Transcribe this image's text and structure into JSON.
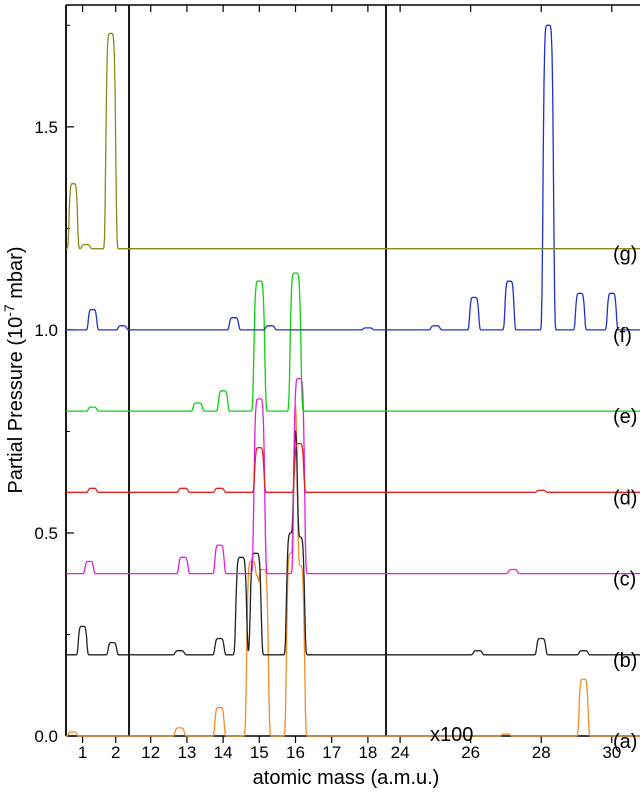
{
  "chart_data": {
    "type": "line",
    "xlabel": "atomic mass (a.m.u.)",
    "ylabel_parts": [
      "Partial Pressure (10",
      "-7",
      " mbar)"
    ],
    "y_ticks": [
      "0.0",
      "0.5",
      "1.0",
      "1.5"
    ],
    "ylim": [
      0,
      1.8
    ],
    "grid": false,
    "legend": "none",
    "annotation": "x100",
    "panels": [
      {
        "range": [
          0.5,
          2.4
        ],
        "ticks": [
          1,
          2
        ],
        "tick_labels": [
          "1",
          "2"
        ]
      },
      {
        "range": [
          11.4,
          18.5
        ],
        "ticks": [
          12,
          13,
          14,
          15,
          16,
          17,
          18
        ],
        "tick_labels": [
          "12",
          "13",
          "14",
          "15",
          "16",
          "17",
          "18"
        ]
      },
      {
        "range": [
          23.6,
          30.8
        ],
        "ticks": [
          24,
          26,
          28,
          30
        ],
        "tick_labels": [
          "24",
          "26",
          "28",
          "30"
        ]
      }
    ],
    "series": [
      {
        "label": "(a)",
        "color": "#f28c28",
        "baseline": 0.0,
        "peaks": [
          [
            0.7,
            0.01
          ],
          [
            12.8,
            0.02
          ],
          [
            13.9,
            0.07
          ],
          [
            14.8,
            0.43
          ],
          [
            15.1,
            0.41
          ],
          [
            15.9,
            0.45
          ],
          [
            16.1,
            0.42
          ],
          [
            27.0,
            0.005
          ],
          [
            29.2,
            0.14
          ]
        ]
      },
      {
        "label": "(b)",
        "color": "#222222",
        "baseline": 0.2,
        "peaks": [
          [
            1.0,
            0.07
          ],
          [
            1.9,
            0.03
          ],
          [
            12.8,
            0.01
          ],
          [
            13.9,
            0.04
          ],
          [
            14.5,
            0.24
          ],
          [
            14.9,
            0.25
          ],
          [
            15.9,
            0.3
          ],
          [
            16.1,
            0.29
          ],
          [
            26.2,
            0.01
          ],
          [
            28.0,
            0.04
          ],
          [
            29.2,
            0.01
          ]
        ]
      },
      {
        "label": "(c)",
        "color": "#e020e0",
        "baseline": 0.4,
        "peaks": [
          [
            1.2,
            0.03
          ],
          [
            12.9,
            0.04
          ],
          [
            13.9,
            0.07
          ],
          [
            15.0,
            0.43
          ],
          [
            16.1,
            0.48
          ],
          [
            27.2,
            0.01
          ]
        ]
      },
      {
        "label": "(d)",
        "color": "#e02020",
        "baseline": 0.6,
        "peaks": [
          [
            1.3,
            0.01
          ],
          [
            12.9,
            0.01
          ],
          [
            13.9,
            0.01
          ],
          [
            15.0,
            0.11
          ],
          [
            16.1,
            0.12
          ],
          [
            28.0,
            0.005
          ]
        ]
      },
      {
        "label": "(e)",
        "color": "#10d010",
        "baseline": 0.8,
        "peaks": [
          [
            1.3,
            0.01
          ],
          [
            13.3,
            0.02
          ],
          [
            14.0,
            0.05
          ],
          [
            15.0,
            0.32
          ],
          [
            16.0,
            0.34
          ]
        ]
      },
      {
        "label": "(f)",
        "color": "#2030d0",
        "baseline": 1.0,
        "peaks": [
          [
            1.3,
            0.05
          ],
          [
            2.2,
            0.01
          ],
          [
            14.3,
            0.03
          ],
          [
            15.3,
            0.01
          ],
          [
            18.0,
            0.005
          ],
          [
            25.0,
            0.01
          ],
          [
            26.1,
            0.08
          ],
          [
            27.1,
            0.12
          ],
          [
            28.2,
            0.75
          ],
          [
            29.1,
            0.09
          ],
          [
            30.0,
            0.09
          ]
        ]
      },
      {
        "label": "(g)",
        "color": "#8a8a1a",
        "baseline": 1.2,
        "peaks": [
          [
            0.72,
            0.16
          ],
          [
            1.1,
            0.01
          ],
          [
            1.85,
            0.53
          ]
        ]
      }
    ]
  }
}
